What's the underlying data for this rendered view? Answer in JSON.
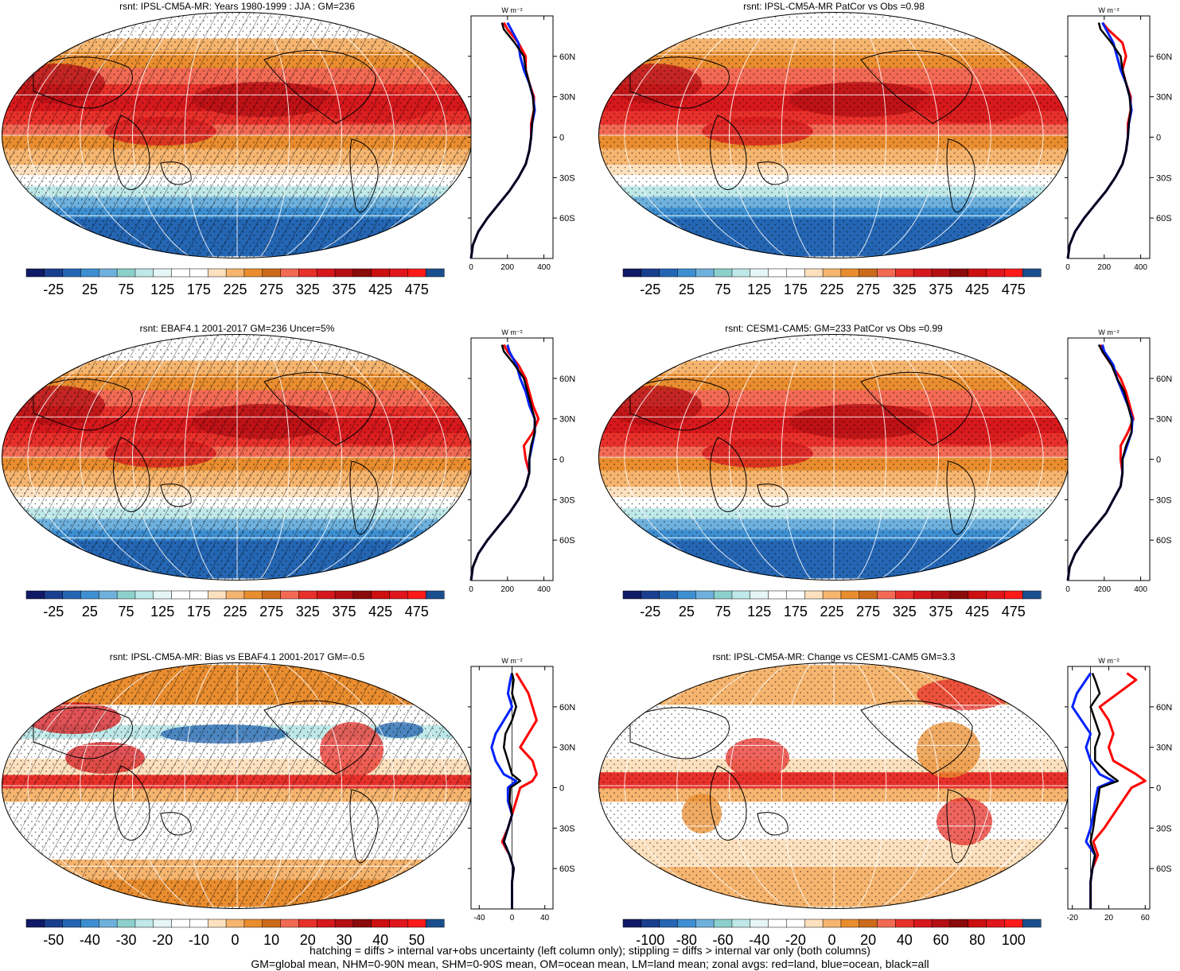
{
  "colors": {
    "full_palette": [
      "#101a66",
      "#1a3f8f",
      "#2466b3",
      "#3d8fd1",
      "#6fb1dd",
      "#8cd0cc",
      "#bfe8e8",
      "#e6f6f6",
      "#ffffff",
      "#ffffff",
      "#fde1bf",
      "#f6b56f",
      "#e98d2f",
      "#cc6a1b",
      "#f26a54",
      "#e8302a",
      "#d6181c",
      "#b40f14",
      "#8b0a0a",
      "#cc0f0f",
      "#e0161c",
      "#ff1a1a",
      "#1a4f8f"
    ],
    "diff_palette": [
      "#101a66",
      "#1a3f8f",
      "#2466b3",
      "#3d8fd1",
      "#6fb1dd",
      "#8cd0cc",
      "#bfe8e8",
      "#e6f6f6",
      "#ffffff",
      "#ffffff",
      "#fde1bf",
      "#f6b56f",
      "#e98d2f",
      "#cc6a1b",
      "#f26a54",
      "#e8302a",
      "#d6181c",
      "#b40f14",
      "#8b0a0a",
      "#cc0f0f",
      "#e0161c",
      "#ff1a1a",
      "#1a4f8f"
    ],
    "zonal_land": "#ff0000",
    "zonal_ocean": "#0022ff",
    "zonal_all": "#000000"
  },
  "chart_data": [
    {
      "type": "heatmap",
      "title": "rsnt: IPSL-CM5A-MR: Years 1980-1999 : JJA : GM=236",
      "colorbar_labels": [
        "-25",
        "25",
        "75",
        "125",
        "175",
        "225",
        "275",
        "325",
        "375",
        "425",
        "475"
      ],
      "palette": "full",
      "hatching": true,
      "zonal": {
        "xlim": [
          0,
          450
        ],
        "xticks": [
          "0",
          "200",
          "400"
        ],
        "unit": "W m⁻²",
        "ylim": [
          -90,
          90
        ],
        "yticks": [
          "60N",
          "30N",
          "0",
          "30S",
          "60S"
        ],
        "lat": [
          -90,
          -80,
          -70,
          -60,
          -50,
          -40,
          -30,
          -20,
          -10,
          0,
          10,
          20,
          30,
          40,
          50,
          60,
          70,
          80,
          85
        ],
        "all": [
          0,
          10,
          40,
          90,
          150,
          210,
          260,
          300,
          320,
          330,
          335,
          345,
          340,
          320,
          300,
          290,
          240,
          180,
          170
        ],
        "land": [
          0,
          10,
          40,
          90,
          150,
          210,
          260,
          300,
          320,
          330,
          330,
          345,
          345,
          320,
          300,
          300,
          260,
          200,
          180
        ],
        "ocean": [
          0,
          10,
          40,
          90,
          150,
          210,
          260,
          300,
          320,
          330,
          335,
          350,
          340,
          320,
          290,
          270,
          260,
          220,
          200
        ]
      }
    },
    {
      "type": "heatmap",
      "title": "rsnt: IPSL-CM5A-MR PatCor vs Obs =0.98",
      "colorbar_labels": [
        "-25",
        "25",
        "75",
        "125",
        "175",
        "225",
        "275",
        "325",
        "375",
        "425",
        "475"
      ],
      "palette": "full",
      "hatching": false,
      "zonal": {
        "xlim": [
          0,
          450
        ],
        "xticks": [
          "0",
          "200",
          "400"
        ],
        "unit": "W m⁻²",
        "ylim": [
          -90,
          90
        ],
        "yticks": [
          "60N",
          "30N",
          "0",
          "30S",
          "60S"
        ],
        "lat": [
          -90,
          -80,
          -70,
          -60,
          -50,
          -40,
          -30,
          -20,
          -10,
          0,
          10,
          20,
          30,
          40,
          50,
          60,
          70,
          80,
          85
        ],
        "all": [
          0,
          10,
          40,
          90,
          150,
          210,
          260,
          300,
          320,
          330,
          335,
          345,
          340,
          320,
          300,
          290,
          240,
          180,
          170
        ],
        "land": [
          0,
          10,
          40,
          90,
          150,
          210,
          260,
          300,
          320,
          330,
          330,
          345,
          345,
          320,
          300,
          320,
          300,
          220,
          190
        ],
        "ocean": [
          0,
          10,
          40,
          90,
          150,
          210,
          260,
          300,
          320,
          330,
          335,
          350,
          340,
          320,
          290,
          270,
          250,
          210,
          190
        ]
      }
    },
    {
      "type": "heatmap",
      "title": "rsnt: EBAF4.1 2001-2017 GM=236 Uncer=5%",
      "colorbar_labels": [
        "-25",
        "25",
        "75",
        "125",
        "175",
        "225",
        "275",
        "325",
        "375",
        "425",
        "475"
      ],
      "palette": "full",
      "hatching": true,
      "zonal": {
        "xlim": [
          0,
          450
        ],
        "xticks": [
          "0",
          "200",
          "400"
        ],
        "unit": "W m⁻²",
        "ylim": [
          -90,
          90
        ],
        "yticks": [
          "60N",
          "30N",
          "0",
          "30S",
          "60S"
        ],
        "lat": [
          -90,
          -80,
          -70,
          -60,
          -50,
          -40,
          -30,
          -20,
          -10,
          0,
          10,
          20,
          30,
          40,
          50,
          60,
          70,
          80,
          85
        ],
        "all": [
          0,
          10,
          40,
          90,
          150,
          210,
          260,
          300,
          320,
          320,
          330,
          350,
          350,
          330,
          310,
          290,
          240,
          180,
          170
        ],
        "land": [
          0,
          10,
          40,
          90,
          150,
          210,
          260,
          300,
          320,
          300,
          290,
          340,
          370,
          340,
          320,
          300,
          260,
          200,
          180
        ],
        "ocean": [
          0,
          10,
          40,
          90,
          150,
          210,
          260,
          300,
          320,
          320,
          335,
          350,
          350,
          320,
          300,
          270,
          250,
          210,
          200
        ]
      }
    },
    {
      "type": "heatmap",
      "title": "rsnt: CESM1-CAM5: GM=233 PatCor vs Obs =0.99",
      "colorbar_labels": [
        "-25",
        "25",
        "75",
        "125",
        "175",
        "225",
        "275",
        "325",
        "375",
        "425",
        "475"
      ],
      "palette": "full",
      "hatching": false,
      "zonal": {
        "xlim": [
          0,
          450
        ],
        "xticks": [
          "0",
          "200",
          "400"
        ],
        "unit": "W m⁻²",
        "ylim": [
          -90,
          90
        ],
        "yticks": [
          "60N",
          "30N",
          "0",
          "30S",
          "60S"
        ],
        "lat": [
          -90,
          -80,
          -70,
          -60,
          -50,
          -40,
          -30,
          -20,
          -10,
          0,
          10,
          20,
          30,
          40,
          50,
          60,
          70,
          80,
          85
        ],
        "all": [
          0,
          10,
          40,
          90,
          150,
          210,
          250,
          290,
          300,
          300,
          320,
          350,
          350,
          330,
          310,
          270,
          240,
          190,
          170
        ],
        "land": [
          0,
          10,
          40,
          90,
          150,
          210,
          250,
          290,
          300,
          290,
          290,
          330,
          360,
          340,
          320,
          290,
          240,
          190,
          180
        ],
        "ocean": [
          0,
          10,
          40,
          90,
          150,
          210,
          250,
          290,
          300,
          300,
          325,
          350,
          355,
          330,
          300,
          270,
          250,
          200,
          190
        ]
      }
    },
    {
      "type": "heatmap",
      "title": "rsnt: IPSL-CM5A-MR: Bias vs EBAF4.1 2001-2017 GM=-0.5",
      "colorbar_labels": [
        "-50",
        "-40",
        "-30",
        "-20",
        "-10",
        "0",
        "10",
        "20",
        "30",
        "40",
        "50"
      ],
      "palette": "diff",
      "hatching": true,
      "zonal": {
        "xlim": [
          -50,
          50
        ],
        "xticks": [
          "-40",
          "0",
          "40"
        ],
        "unit": "W m⁻²",
        "ylim": [
          -90,
          90
        ],
        "yticks": [
          "60N",
          "30N",
          "0",
          "30S",
          "60S"
        ],
        "lat": [
          -90,
          -80,
          -70,
          -60,
          -50,
          -40,
          -30,
          -20,
          -10,
          0,
          5,
          10,
          20,
          30,
          40,
          50,
          60,
          70,
          80,
          85
        ],
        "all": [
          0,
          0,
          0,
          2,
          -3,
          -10,
          -5,
          0,
          -3,
          -2,
          10,
          0,
          -5,
          -10,
          -8,
          0,
          5,
          0,
          2,
          0
        ],
        "land": [
          0,
          0,
          0,
          2,
          -3,
          -12,
          -5,
          0,
          5,
          10,
          25,
          30,
          25,
          10,
          20,
          30,
          25,
          20,
          10,
          5
        ],
        "ocean": [
          0,
          0,
          0,
          2,
          -3,
          -10,
          -5,
          0,
          -5,
          -5,
          5,
          -10,
          -20,
          -25,
          -20,
          -10,
          0,
          -5,
          -2,
          0
        ]
      }
    },
    {
      "type": "heatmap",
      "title": "rsnt: IPSL-CM5A-MR: Change vs CESM1-CAM5 GM=3.3",
      "colorbar_labels": [
        "-100",
        "-80",
        "-60",
        "-40",
        "-20",
        "0",
        "20",
        "40",
        "60",
        "80",
        "100"
      ],
      "palette": "diff",
      "hatching": false,
      "zonal": {
        "xlim": [
          -25,
          65
        ],
        "xticks": [
          "-20",
          "20",
          "60"
        ],
        "unit": "W m⁻²",
        "ylim": [
          -90,
          90
        ],
        "yticks": [
          "60N",
          "30N",
          "0",
          "30S",
          "60S"
        ],
        "lat": [
          -90,
          -80,
          -70,
          -60,
          -50,
          -40,
          -30,
          -20,
          -10,
          0,
          5,
          10,
          20,
          30,
          40,
          50,
          60,
          70,
          80,
          85
        ],
        "all": [
          0,
          0,
          0,
          2,
          5,
          0,
          3,
          5,
          8,
          10,
          30,
          20,
          5,
          5,
          10,
          5,
          0,
          10,
          5,
          2
        ],
        "land": [
          0,
          0,
          0,
          2,
          8,
          3,
          15,
          25,
          35,
          45,
          60,
          50,
          25,
          20,
          25,
          20,
          10,
          30,
          50,
          40
        ],
        "ocean": [
          0,
          0,
          0,
          2,
          5,
          -5,
          0,
          3,
          5,
          8,
          25,
          10,
          0,
          -5,
          0,
          -10,
          -20,
          -15,
          -5,
          0
        ]
      }
    }
  ],
  "footer": {
    "line1": "hatching = diffs > internal var+obs uncertainty (left column only); stippling = diffs > internal var only (both columns)",
    "line2": "GM=global mean, NHM=0-90N mean, SHM=0-90S mean, OM=ocean mean, LM=land mean; zonal avgs: red=land, blue=ocean, black=all"
  }
}
